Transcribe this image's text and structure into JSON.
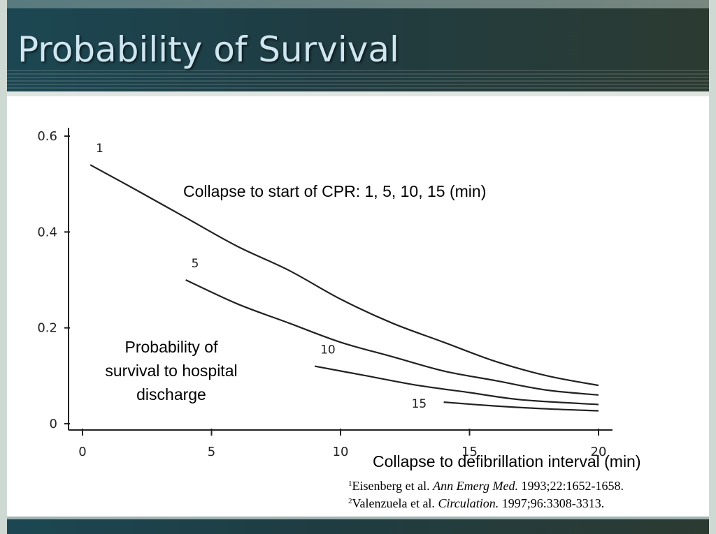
{
  "slide": {
    "title": "Probability of Survival"
  },
  "annotations": {
    "legend_note": "Collapse to start of CPR: 1, 5, 10, 15 (min)",
    "ylabel_line1": "Probability of",
    "ylabel_line2": "survival to hospital",
    "ylabel_line3": "discharge",
    "xlabel": "Collapse to defibrillation interval (min)"
  },
  "references": [
    {
      "num": "1",
      "authors": "Eisenberg et al. ",
      "journal": "Ann Emerg Med.",
      "details": " 1993;22:1652-1658."
    },
    {
      "num": "2",
      "authors": "Valenzuela et al. ",
      "journal": "Circulation.",
      "details": " 1997;96:3308-3313."
    }
  ],
  "colors": {
    "header": "#1f3c42",
    "title": "#cfe6f1",
    "line": "#222222"
  },
  "chart_data": {
    "type": "line",
    "title": "",
    "xlabel": "Collapse to defibrillation interval (min)",
    "ylabel": "Probability of survival to hospital discharge",
    "xlim": [
      0,
      20
    ],
    "ylim": [
      0,
      0.6
    ],
    "x_ticks": [
      "0",
      "5",
      "10",
      "15",
      "20"
    ],
    "y_ticks": [
      "0",
      "0.2",
      "0.4",
      "0.6"
    ],
    "grid": false,
    "series": [
      {
        "name": "1",
        "x": [
          0.3,
          2,
          4,
          6,
          8,
          10,
          12,
          14,
          16,
          18,
          20
        ],
        "values": [
          0.54,
          0.49,
          0.43,
          0.37,
          0.32,
          0.26,
          0.21,
          0.17,
          0.13,
          0.1,
          0.08
        ]
      },
      {
        "name": "5",
        "x": [
          4,
          6,
          8,
          10,
          12,
          14,
          16,
          18,
          20
        ],
        "values": [
          0.3,
          0.25,
          0.21,
          0.17,
          0.14,
          0.11,
          0.09,
          0.07,
          0.06
        ]
      },
      {
        "name": "10",
        "x": [
          9,
          11,
          13,
          15,
          17,
          20
        ],
        "values": [
          0.12,
          0.1,
          0.08,
          0.065,
          0.05,
          0.04
        ]
      },
      {
        "name": "15",
        "x": [
          14,
          16,
          18,
          20
        ],
        "values": [
          0.045,
          0.037,
          0.031,
          0.027
        ]
      }
    ]
  }
}
